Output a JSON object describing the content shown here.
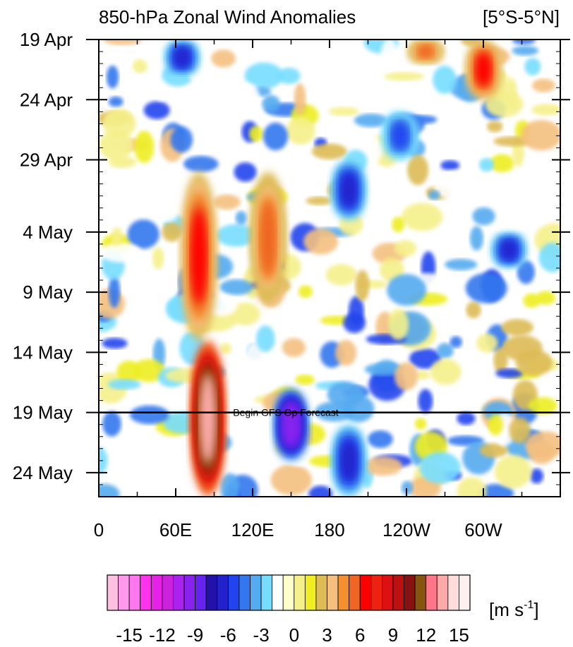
{
  "chart_data": {
    "type": "heatmap",
    "title": "850-hPa Zonal Wind Anomalies",
    "region_label": "[5°S-5°N]",
    "x_tick_labels": [
      "0",
      "60E",
      "120E",
      "180",
      "120W",
      "60W"
    ],
    "x_ticks_deg_east": [
      0,
      60,
      120,
      180,
      240,
      300
    ],
    "xlim_deg_east": [
      0,
      360
    ],
    "y_tick_labels": [
      "19 Apr",
      "24 Apr",
      "29 Apr",
      "4 May",
      "9 May",
      "14 May",
      "19 May",
      "24 May"
    ],
    "y_tick_dates": [
      "04-19",
      "04-24",
      "04-29",
      "05-04",
      "05-09",
      "05-14",
      "05-19",
      "05-24"
    ],
    "ylim_dates": [
      "04-19",
      "05-26"
    ],
    "y_reversed": true,
    "forecast_line_date": "05-19",
    "forecast_label": "Begin GFS Op Forecast",
    "colorbar": {
      "unit_label": "m s",
      "unit_exponent": "-1",
      "tick_labels": [
        "-15",
        "-12",
        "-9",
        "-6",
        "-3",
        "0",
        "3",
        "6",
        "9",
        "12",
        "15"
      ],
      "levels": [
        -15,
        -14,
        -13,
        -12,
        -11,
        -10,
        -9,
        -8,
        -7,
        -6,
        -5,
        -4,
        -3,
        -2,
        -1,
        0,
        1,
        2,
        3,
        4,
        5,
        6,
        7,
        8,
        9,
        10,
        11,
        12,
        13,
        14,
        15
      ],
      "colors": [
        "#ffc0e0",
        "#ff99ee",
        "#ff77ee",
        "#ff33ee",
        "#e622e6",
        "#cc22dd",
        "#aa22ee",
        "#8822ee",
        "#6622ee",
        "#2211aa",
        "#2222cc",
        "#2244ee",
        "#3377ee",
        "#55aaf0",
        "#77ddff",
        "#ffffff",
        "#ffffcc",
        "#f5f08a",
        "#eeee22",
        "#ddbb55",
        "#f4c080",
        "#f59030",
        "#ee6622",
        "#ff0000",
        "#ee2211",
        "#dd1111",
        "#bb1111",
        "#881111",
        "#885511",
        "#ff7788",
        "#ffaaaa",
        "#ffdddd",
        "#fff0f0"
      ]
    },
    "anomaly_features": [
      {
        "type": "westerly",
        "lon_east": 85,
        "date_start": "05-13",
        "date_end": "05-26",
        "peak": 15
      },
      {
        "type": "westerly",
        "lon_east": 78,
        "date_start": "04-30",
        "date_end": "05-13",
        "peak": 7
      },
      {
        "type": "westerly",
        "lon_east": 132,
        "date_start": "04-30",
        "date_end": "05-10",
        "peak": 6
      },
      {
        "type": "westerly",
        "lon_east": 300,
        "date_start": "04-19",
        "date_end": "04-24",
        "peak": 8
      },
      {
        "type": "westerly",
        "lon_east": 255,
        "date_start": "04-19",
        "date_end": "04-21",
        "peak": 6
      },
      {
        "type": "easterly",
        "lon_east": 150,
        "date_start": "05-17",
        "date_end": "05-23",
        "peak": -11
      },
      {
        "type": "easterly",
        "lon_east": 195,
        "date_start": "05-20",
        "date_end": "05-26",
        "peak": -8
      },
      {
        "type": "easterly",
        "lon_east": 65,
        "date_start": "04-19",
        "date_end": "04-22",
        "peak": -8
      },
      {
        "type": "easterly",
        "lon_east": 195,
        "date_start": "04-29",
        "date_end": "05-03",
        "peak": -7
      },
      {
        "type": "easterly",
        "lon_east": 320,
        "date_start": "05-04",
        "date_end": "05-07",
        "peak": -8
      },
      {
        "type": "easterly",
        "lon_east": 235,
        "date_start": "04-25",
        "date_end": "04-29",
        "peak": -6
      }
    ]
  }
}
